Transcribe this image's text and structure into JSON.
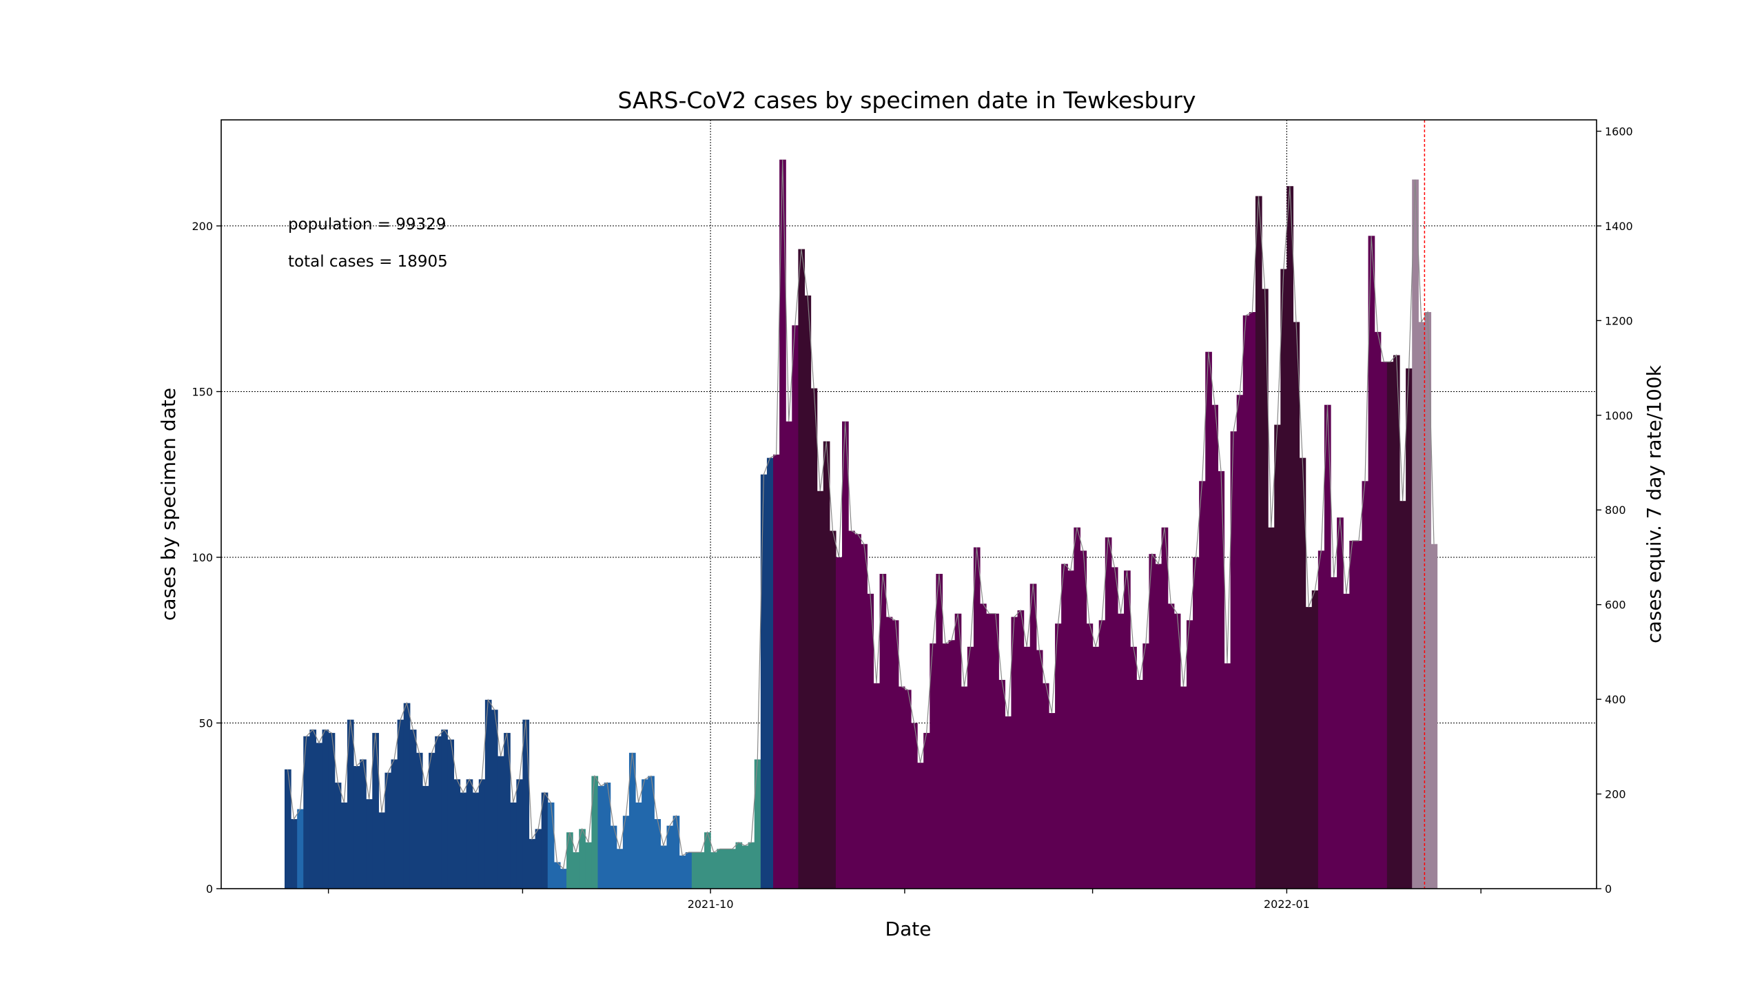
{
  "chart_data": {
    "type": "bar",
    "title": "SARS-CoV2 cases by specimen date in Tewkesbury",
    "xlabel": "Date",
    "ylabel": "cases by specimen date",
    "y2label": "cases equiv. 7 day rate/100k",
    "annotations": [
      "population = 99329",
      "total cases = 18905"
    ],
    "x_start": "2021-07-25",
    "ylim": [
      0,
      232
    ],
    "y2lim": [
      0,
      1624
    ],
    "yticks": [
      0,
      50,
      100,
      150,
      200
    ],
    "y2ticks": [
      0,
      200,
      400,
      600,
      800,
      1000,
      1200,
      1400,
      1600
    ],
    "xticks": [
      {
        "date": "2021-10-01",
        "label": "2021-10"
      },
      {
        "date": "2022-01-01",
        "label": "2022-01"
      }
    ],
    "x_minor_ticks": [
      "2021-08-01",
      "2021-09-01",
      "2021-11-01",
      "2021-12-01",
      "2022-02-01"
    ],
    "marker_line": {
      "date": "2022-01-23",
      "color": "#ff0000"
    },
    "grid": true,
    "values": [
      36,
      21,
      24,
      46,
      48,
      44,
      48,
      47,
      32,
      26,
      51,
      37,
      39,
      27,
      47,
      23,
      35,
      39,
      51,
      56,
      48,
      41,
      31,
      41,
      46,
      48,
      45,
      33,
      29,
      33,
      29,
      33,
      57,
      54,
      40,
      47,
      26,
      33,
      51,
      15,
      18,
      29,
      26,
      8,
      6,
      17,
      11,
      18,
      14,
      34,
      31,
      32,
      19,
      12,
      22,
      41,
      26,
      33,
      34,
      21,
      13,
      19,
      22,
      10,
      11,
      11,
      11,
      17,
      11,
      12,
      12,
      12,
      14,
      13,
      14,
      39,
      125,
      130,
      131,
      220,
      141,
      170,
      193,
      179,
      151,
      120,
      135,
      108,
      100,
      141,
      108,
      107,
      104,
      89,
      62,
      95,
      82,
      81,
      61,
      60,
      50,
      38,
      47,
      74,
      95,
      74,
      75,
      83,
      61,
      73,
      103,
      86,
      83,
      83,
      63,
      52,
      82,
      84,
      73,
      92,
      72,
      62,
      53,
      80,
      98,
      96,
      109,
      102,
      80,
      73,
      81,
      106,
      97,
      83,
      96,
      73,
      63,
      74,
      101,
      98,
      109,
      86,
      83,
      61,
      81,
      100,
      123,
      162,
      146,
      126,
      68,
      138,
      149,
      173,
      174,
      209,
      181,
      109,
      140,
      187,
      212,
      171,
      130,
      85,
      90,
      102,
      146,
      94,
      112,
      89,
      105,
      105,
      123,
      197,
      168,
      159,
      159,
      161,
      117,
      157,
      214,
      171,
      174,
      104
    ],
    "colors": {
      "low": "#143f7c",
      "mid": "#2268ac",
      "teal": "#3a9182",
      "high": "#5e0052",
      "very_high": "#3a0a2e",
      "provisional": "#9d8399",
      "rate_line": "#888888",
      "marker": "#ff0000"
    }
  }
}
